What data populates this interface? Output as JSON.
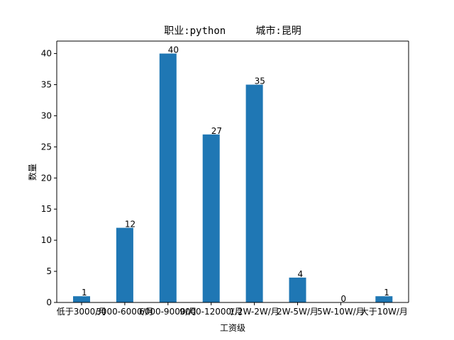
{
  "chart_data": {
    "type": "bar",
    "title": "职业:python     城市:昆明",
    "xlabel": "工资级",
    "ylabel": "数量",
    "categories": [
      "低于3000/月",
      "3000-6000/月",
      "6000-9000/月",
      "9000-12000/月",
      "1.2W-2W/月",
      "2W-5W/月",
      "5W-10W/月",
      "大于10W/月"
    ],
    "values": [
      1,
      12,
      40,
      27,
      35,
      4,
      0,
      1
    ],
    "ylim": [
      0,
      42
    ],
    "yticks": [
      0,
      5,
      10,
      15,
      20,
      25,
      30,
      35,
      40
    ],
    "bar_color": "#1f77b4",
    "grid": false,
    "legend": "none"
  }
}
